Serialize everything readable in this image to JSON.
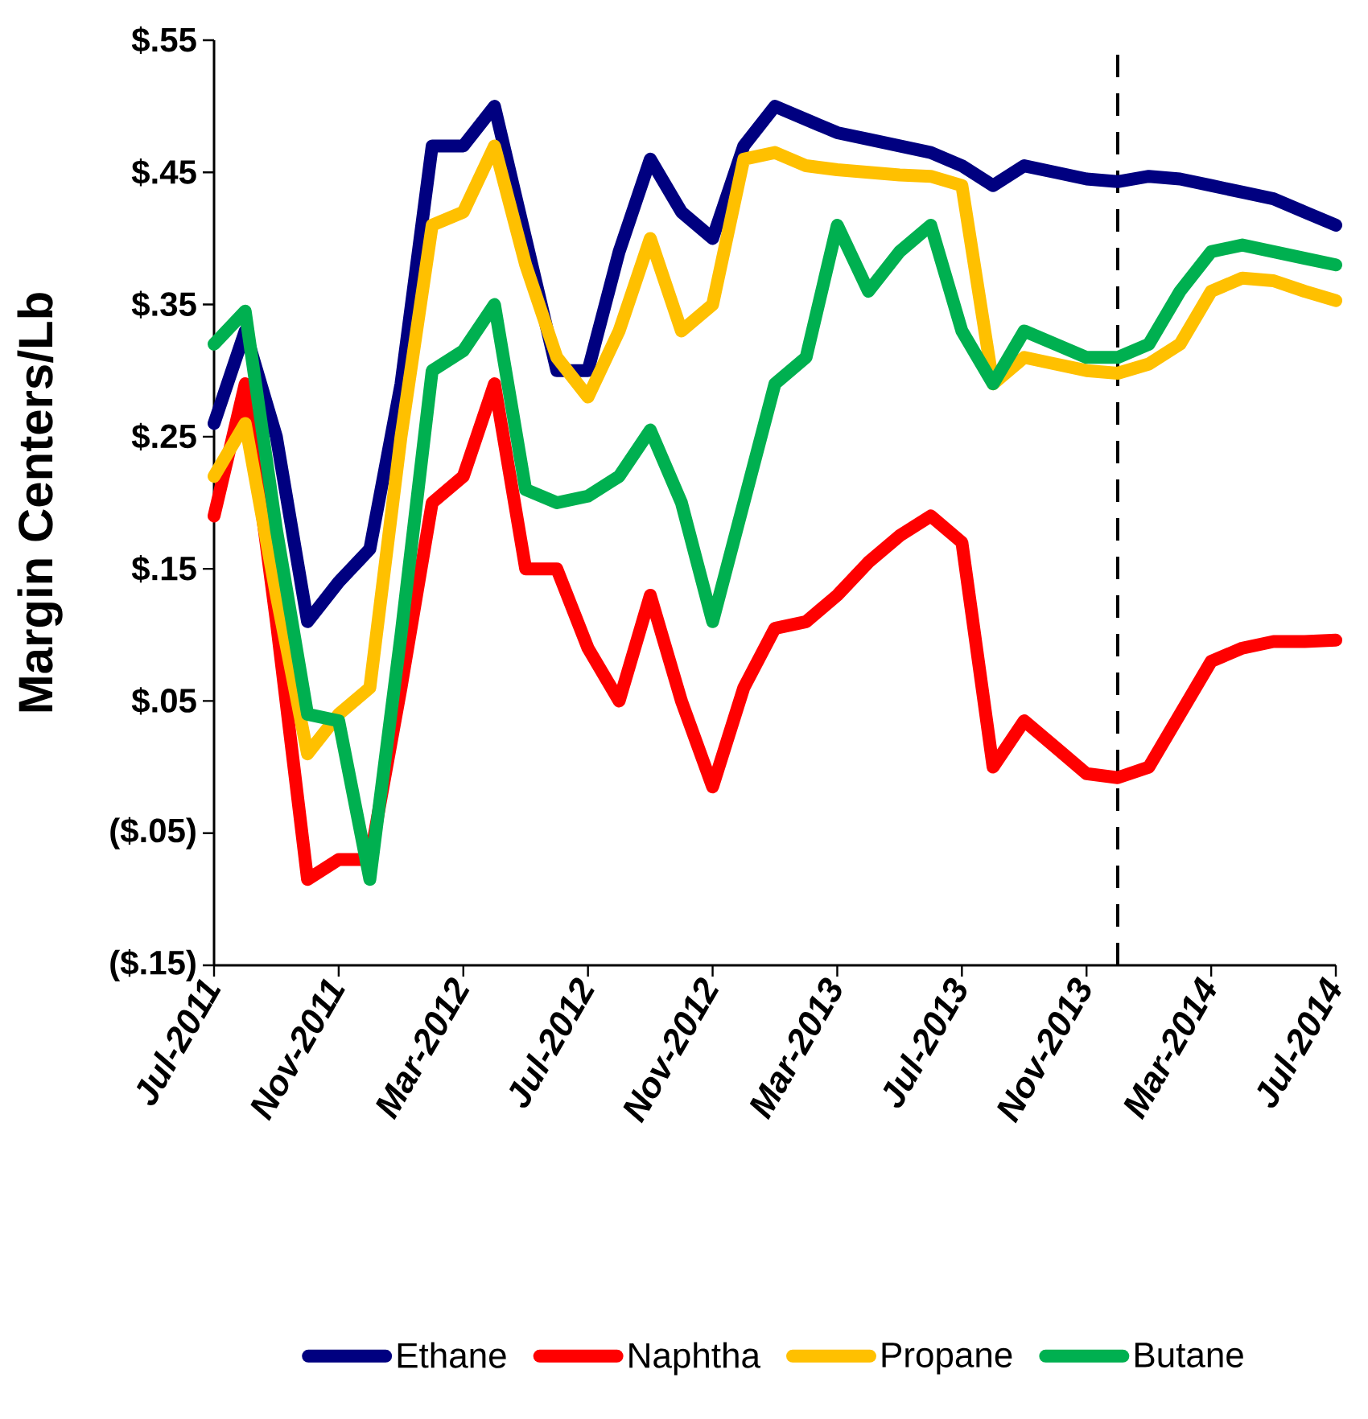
{
  "chart_data": {
    "type": "line",
    "ylabel": "Margin Centers/Lb",
    "x": [
      "2011-07",
      "2011-08",
      "2011-09",
      "2011-10",
      "2011-11",
      "2011-12",
      "2012-01",
      "2012-02",
      "2012-03",
      "2012-04",
      "2012-05",
      "2012-06",
      "2012-07",
      "2012-08",
      "2012-09",
      "2012-10",
      "2012-11",
      "2012-12",
      "2013-01",
      "2013-02",
      "2013-03",
      "2013-04",
      "2013-05",
      "2013-06",
      "2013-07",
      "2013-08",
      "2013-09",
      "2013-10",
      "2013-11",
      "2013-12",
      "2014-01",
      "2014-02",
      "2014-03",
      "2014-04",
      "2014-05",
      "2014-06",
      "2014-07"
    ],
    "xlim": [
      "2011-07",
      "2014-07"
    ],
    "xticks": [
      {
        "value": "2011-07",
        "label": "Jul-2011"
      },
      {
        "value": "2011-11",
        "label": "Nov-2011"
      },
      {
        "value": "2012-03",
        "label": "Mar-2012"
      },
      {
        "value": "2012-07",
        "label": "Jul-2012"
      },
      {
        "value": "2012-11",
        "label": "Nov-2012"
      },
      {
        "value": "2013-03",
        "label": "Mar-2013"
      },
      {
        "value": "2013-07",
        "label": "Jul-2013"
      },
      {
        "value": "2013-11",
        "label": "Nov-2013"
      },
      {
        "value": "2014-03",
        "label": "Mar-2014"
      },
      {
        "value": "2014-07",
        "label": "Jul-2014"
      }
    ],
    "ylim": [
      -0.15,
      0.55
    ],
    "yticks": [
      {
        "value": -0.15,
        "label": "($.15)"
      },
      {
        "value": -0.05,
        "label": "($.05)"
      },
      {
        "value": 0.05,
        "label": "$.05"
      },
      {
        "value": 0.15,
        "label": "$.15"
      },
      {
        "value": 0.25,
        "label": "$.25"
      },
      {
        "value": 0.35,
        "label": "$.35"
      },
      {
        "value": 0.45,
        "label": "$.45"
      },
      {
        "value": 0.55,
        "label": "$.55"
      }
    ],
    "series": [
      {
        "name": "Ethane",
        "color": "#000080",
        "values": [
          0.26,
          0.33,
          0.25,
          0.11,
          0.14,
          0.165,
          0.29,
          0.47,
          0.47,
          0.5,
          0.4,
          0.3,
          0.3,
          0.39,
          0.46,
          0.42,
          0.4,
          0.47,
          0.5,
          0.49,
          0.48,
          0.475,
          0.47,
          0.465,
          0.455,
          0.44,
          0.455,
          0.45,
          0.445,
          0.443,
          0.447,
          0.445,
          0.44,
          0.435,
          0.43,
          0.42,
          0.41
        ]
      },
      {
        "name": "Naphtha",
        "color": "#ff0000",
        "values": [
          0.19,
          0.29,
          0.11,
          -0.085,
          -0.07,
          -0.07,
          0.06,
          0.2,
          0.22,
          0.29,
          0.15,
          0.15,
          0.09,
          0.05,
          0.13,
          0.05,
          -0.015,
          0.06,
          0.105,
          0.11,
          0.13,
          0.155,
          0.175,
          0.19,
          0.17,
          0.0,
          0.035,
          0.015,
          -0.005,
          -0.008,
          0.0,
          0.04,
          0.08,
          0.09,
          0.095,
          0.095,
          0.096
        ]
      },
      {
        "name": "Propane",
        "color": "#ffc000",
        "values": [
          0.22,
          0.26,
          0.13,
          0.01,
          0.04,
          0.06,
          0.25,
          0.41,
          0.42,
          0.47,
          0.38,
          0.31,
          0.28,
          0.33,
          0.4,
          0.33,
          0.35,
          0.46,
          0.465,
          0.455,
          0.452,
          0.45,
          0.448,
          0.447,
          0.44,
          0.29,
          0.31,
          0.305,
          0.3,
          0.298,
          0.305,
          0.32,
          0.36,
          0.37,
          0.368,
          0.36,
          0.353
        ]
      },
      {
        "name": "Butane",
        "color": "#00b050",
        "values": [
          0.32,
          0.345,
          0.18,
          0.04,
          0.035,
          -0.085,
          0.1,
          0.3,
          0.315,
          0.35,
          0.21,
          0.2,
          0.205,
          0.22,
          0.255,
          0.2,
          0.11,
          0.2,
          0.29,
          0.31,
          0.41,
          0.36,
          0.39,
          0.41,
          0.33,
          0.29,
          0.33,
          0.32,
          0.31,
          0.31,
          0.32,
          0.36,
          0.39,
          0.395,
          0.39,
          0.385,
          0.38
        ]
      }
    ],
    "ref_lines": [
      {
        "axis": "x",
        "value": "2013-12",
        "color": "#000000",
        "line_style": "dashed"
      }
    ],
    "legend": "bottom",
    "line_style": "solid"
  }
}
